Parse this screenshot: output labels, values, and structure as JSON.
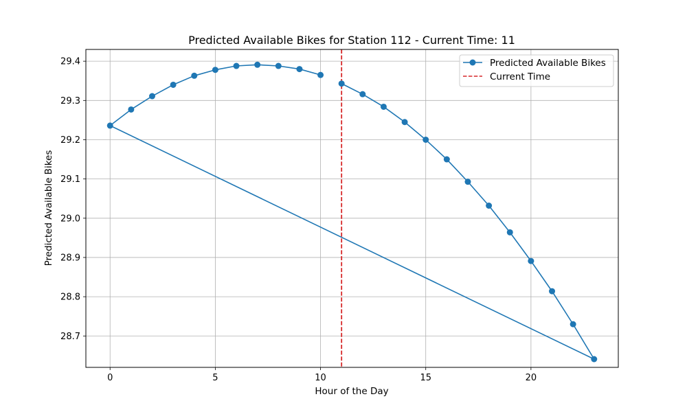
{
  "chart_data": {
    "type": "line",
    "title": "Predicted Available Bikes for Station 112 - Current Time: 11",
    "xlabel": "Hour of the Day",
    "ylabel": "Predicted Available Bikes",
    "xlim": [
      -1.15,
      24.15
    ],
    "ylim": [
      28.62,
      29.43
    ],
    "xticks": [
      0,
      5,
      10,
      15,
      20
    ],
    "yticks": [
      28.7,
      28.8,
      28.9,
      29.0,
      29.1,
      29.2,
      29.3,
      29.4
    ],
    "xtick_labels": [
      "0",
      "5",
      "10",
      "15",
      "20"
    ],
    "ytick_labels": [
      "28.7",
      "28.8",
      "28.9",
      "29.0",
      "29.1",
      "29.2",
      "29.3",
      "29.4"
    ],
    "grid": true,
    "legend_position": "top-right",
    "series": [
      {
        "name": "Predicted Available Bikes",
        "color": "#1f77b4",
        "marker": "circle",
        "x": [
          11,
          12,
          13,
          14,
          15,
          16,
          17,
          18,
          19,
          20,
          21,
          22,
          23,
          0,
          1,
          2,
          3,
          4,
          5,
          6,
          7,
          8,
          9,
          10
        ],
        "y": [
          29.343,
          29.316,
          29.284,
          29.245,
          29.2,
          29.15,
          29.093,
          29.032,
          28.964,
          28.891,
          28.814,
          28.73,
          28.641,
          29.236,
          29.277,
          29.311,
          29.34,
          29.363,
          29.378,
          29.388,
          29.391,
          29.388,
          29.38,
          29.365
        ]
      }
    ],
    "reference_lines": [
      {
        "name": "Current Time",
        "orientation": "vertical",
        "x": 11,
        "color": "#d62728",
        "style": "dashed"
      }
    ]
  }
}
